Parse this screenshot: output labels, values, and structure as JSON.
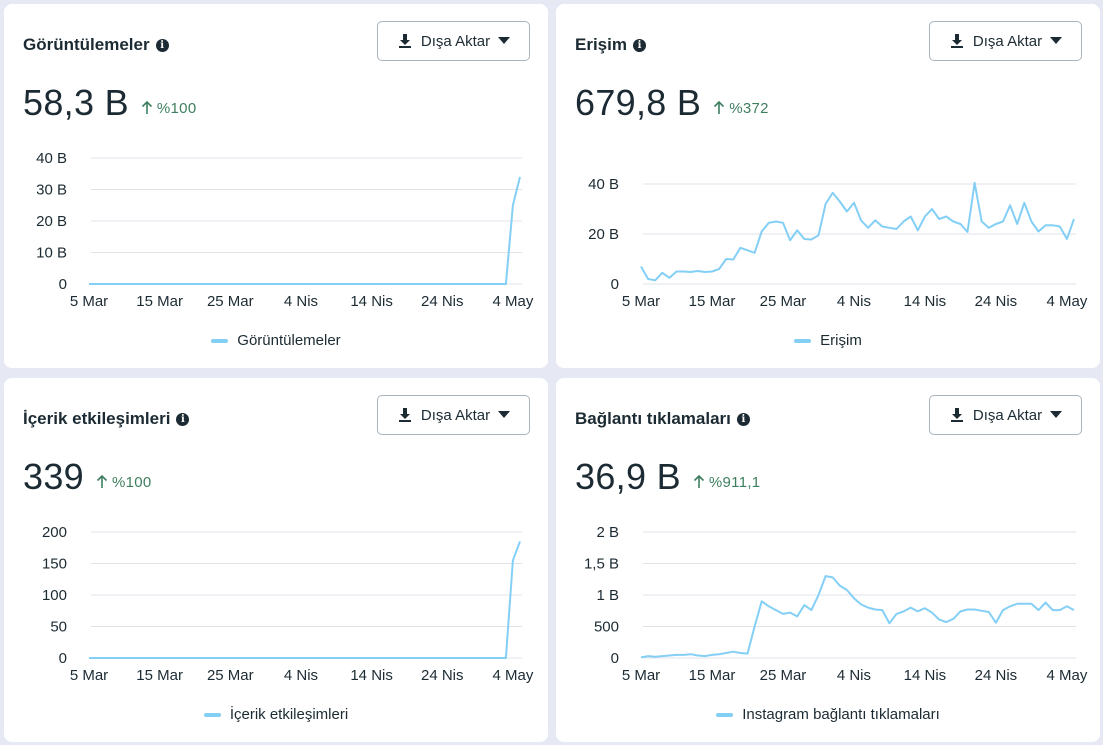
{
  "export_label": "Dışa Aktar",
  "cards": [
    {
      "title": "Görüntülemeler",
      "value": "58,3 B",
      "delta": "%100",
      "legend": "Görüntülemeler"
    },
    {
      "title": "Erişim",
      "value": "679,8 B",
      "delta": "%372",
      "legend": "Erişim"
    },
    {
      "title": "İçerik etkileşimleri",
      "value": "339",
      "delta": "%100",
      "legend": "İçerik etkileşimleri"
    },
    {
      "title": "Bağlantı tıklamaları",
      "value": "36,9 B",
      "delta": "%911,1",
      "legend": "Instagram bağlantı tıklamaları"
    }
  ],
  "colors": {
    "series": "#84cff6",
    "grid": "#dfe3e8",
    "delta": "#3e7f5f"
  },
  "chart_data": [
    {
      "type": "line",
      "title": "Görüntülemeler",
      "x_ticks": [
        "5 Mar",
        "15 Mar",
        "25 Mar",
        "4 Nis",
        "14 Nis",
        "24 Nis",
        "4 May"
      ],
      "y_ticks": [
        "40 B",
        "30 B",
        "20 B",
        "10 B",
        "0"
      ],
      "ylim": [
        0,
        40000
      ],
      "series": [
        {
          "name": "Görüntülemeler",
          "values": [
            0,
            0,
            0,
            0,
            0,
            0,
            0,
            0,
            0,
            0,
            0,
            0,
            0,
            0,
            0,
            0,
            0,
            0,
            0,
            0,
            0,
            0,
            0,
            0,
            0,
            0,
            0,
            0,
            0,
            0,
            0,
            0,
            0,
            0,
            0,
            0,
            0,
            0,
            0,
            0,
            0,
            0,
            0,
            0,
            0,
            0,
            0,
            0,
            0,
            0,
            0,
            0,
            0,
            0,
            0,
            0,
            0,
            0,
            0,
            0,
            25000,
            34000
          ]
        }
      ]
    },
    {
      "type": "line",
      "title": "Erişim",
      "x_ticks": [
        "5 Mar",
        "15 Mar",
        "25 Mar",
        "4 Nis",
        "14 Nis",
        "24 Nis",
        "4 May"
      ],
      "y_ticks": [
        "40 B",
        "20 B",
        "0"
      ],
      "ylim": [
        0,
        40000
      ],
      "series": [
        {
          "name": "Erişim",
          "values": [
            7000,
            2000,
            1500,
            4500,
            2500,
            5000,
            5000,
            4800,
            5200,
            4800,
            5000,
            6000,
            10000,
            9800,
            14500,
            13500,
            12500,
            21000,
            24500,
            25000,
            24500,
            17500,
            21500,
            18000,
            17800,
            19500,
            32000,
            36500,
            33000,
            29000,
            32500,
            25500,
            22500,
            25500,
            23000,
            22500,
            22000,
            25000,
            27000,
            21500,
            27000,
            30000,
            26000,
            27000,
            25000,
            24000,
            20800,
            40500,
            25000,
            22500,
            24000,
            25000,
            31500,
            24000,
            32500,
            25000,
            21000,
            23500,
            23500,
            23000,
            18000,
            26000
          ]
        }
      ]
    },
    {
      "type": "line",
      "title": "İçerik etkileşimleri",
      "x_ticks": [
        "5 Mar",
        "15 Mar",
        "25 Mar",
        "4 Nis",
        "14 Nis",
        "24 Nis",
        "4 May"
      ],
      "y_ticks": [
        "200",
        "150",
        "100",
        "50",
        "0"
      ],
      "ylim": [
        0,
        200
      ],
      "series": [
        {
          "name": "İçerik etkileşimleri",
          "values": [
            0,
            0,
            0,
            0,
            0,
            0,
            0,
            0,
            0,
            0,
            0,
            0,
            0,
            0,
            0,
            0,
            0,
            0,
            0,
            0,
            0,
            0,
            0,
            0,
            0,
            0,
            0,
            0,
            0,
            0,
            0,
            0,
            0,
            0,
            0,
            0,
            0,
            0,
            0,
            0,
            0,
            0,
            0,
            0,
            0,
            0,
            0,
            0,
            0,
            0,
            0,
            0,
            0,
            0,
            0,
            0,
            0,
            0,
            0,
            0,
            155,
            185
          ]
        }
      ]
    },
    {
      "type": "line",
      "title": "Bağlantı tıklamaları",
      "x_ticks": [
        "5 Mar",
        "15 Mar",
        "25 Mar",
        "4 Nis",
        "14 Nis",
        "24 Nis",
        "4 May"
      ],
      "y_ticks": [
        "2 B",
        "1,5 B",
        "1 B",
        "500",
        "0"
      ],
      "ylim": [
        0,
        2000
      ],
      "series": [
        {
          "name": "Instagram bağlantı tıklamaları",
          "values": [
            10,
            30,
            20,
            30,
            40,
            50,
            50,
            60,
            40,
            30,
            50,
            60,
            80,
            100,
            80,
            70,
            500,
            900,
            820,
            760,
            700,
            720,
            660,
            840,
            760,
            1000,
            1300,
            1280,
            1150,
            1080,
            950,
            850,
            800,
            770,
            760,
            550,
            700,
            740,
            800,
            740,
            790,
            720,
            610,
            570,
            620,
            740,
            770,
            770,
            750,
            730,
            560,
            760,
            820,
            860,
            860,
            860,
            760,
            880,
            760,
            760,
            820,
            760
          ]
        }
      ]
    }
  ]
}
